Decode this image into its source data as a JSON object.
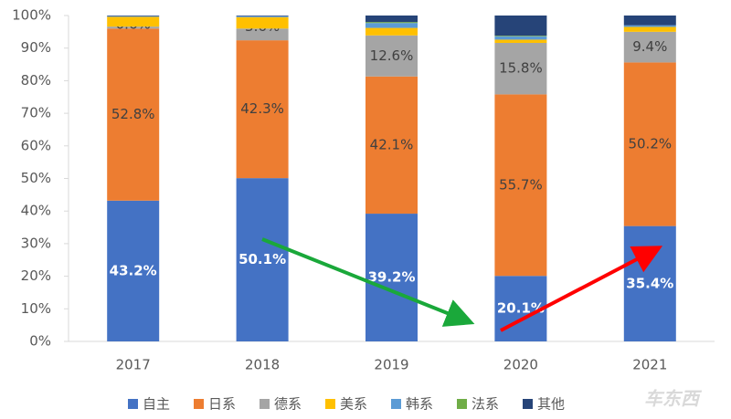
{
  "chart_data": {
    "type": "stacked-bar",
    "categories": [
      "2017",
      "2018",
      "2019",
      "2020",
      "2021"
    ],
    "series": [
      {
        "name": "自主",
        "color": "#4472c4",
        "values": [
          43.2,
          50.1,
          39.2,
          20.1,
          35.4
        ],
        "value_labels": [
          "43.2%",
          "50.1%",
          "39.2%",
          "20.1%",
          "35.4%"
        ]
      },
      {
        "name": "日系",
        "color": "#ed7d31",
        "values": [
          52.8,
          42.3,
          42.1,
          55.7,
          50.2
        ],
        "value_labels": [
          "52.8%",
          "42.3%",
          "42.1%",
          "55.7%",
          "50.2%"
        ]
      },
      {
        "name": "德系",
        "color": "#a5a5a5",
        "values": [
          0.6,
          3.6,
          12.6,
          15.8,
          9.4
        ],
        "value_labels": [
          "0.6%",
          "3.6%",
          "12.6%",
          "15.8%",
          "9.4%"
        ]
      },
      {
        "name": "美系",
        "color": "#ffc000",
        "values": [
          3.0,
          3.5,
          2.3,
          1.0,
          1.5
        ]
      },
      {
        "name": "韩系",
        "color": "#5b9bd5",
        "values": [
          0.2,
          0.3,
          1.5,
          1.0,
          0.5
        ]
      },
      {
        "name": "法系",
        "color": "#70ad47",
        "values": [
          0,
          0,
          0.3,
          0.2,
          0
        ]
      },
      {
        "name": "其他",
        "color": "#264478",
        "values": [
          0.2,
          0.2,
          2.0,
          6.2,
          3.0
        ]
      }
    ],
    "ylim": [
      0,
      100
    ],
    "yticks": [
      {
        "value": 0,
        "label": "0%"
      },
      {
        "value": 10,
        "label": "10%"
      },
      {
        "value": 20,
        "label": "20%"
      },
      {
        "value": 30,
        "label": "30%"
      },
      {
        "value": 40,
        "label": "40%"
      },
      {
        "value": 50,
        "label": "50%"
      },
      {
        "value": 60,
        "label": "60%"
      },
      {
        "value": 70,
        "label": "70%"
      },
      {
        "value": 80,
        "label": "80%"
      },
      {
        "value": 90,
        "label": "90%"
      },
      {
        "value": 100,
        "label": "100%"
      }
    ],
    "watermark": "车东西"
  }
}
